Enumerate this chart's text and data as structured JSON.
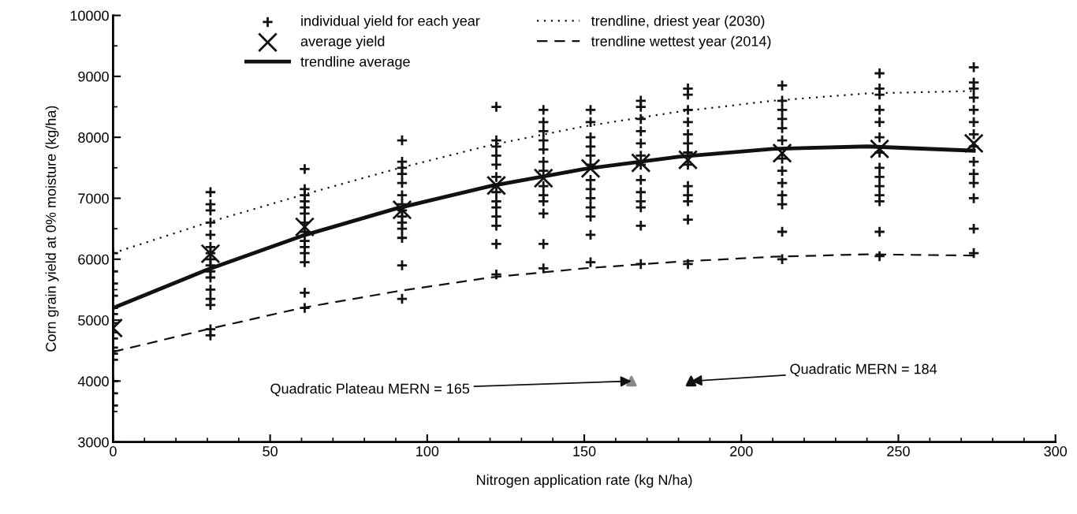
{
  "chart_data": {
    "type": "scatter",
    "xlabel": "Nitrogen application rate (kg N/ha)",
    "ylabel": "Corn grain yield at 0% moisture (kg/ha)",
    "xlim": [
      0,
      300
    ],
    "xticks": [
      0,
      50,
      100,
      150,
      200,
      250,
      300
    ],
    "ylim": [
      3000,
      10000
    ],
    "yticks": [
      3000,
      4000,
      5000,
      6000,
      7000,
      8000,
      9000,
      10000
    ],
    "grid": false,
    "legend": "top",
    "series": [
      {
        "name": "individual yield for each year",
        "marker": "cross",
        "color": "#111111",
        "x": [
          0,
          0,
          0,
          0,
          0,
          0,
          0,
          0,
          0,
          0,
          0,
          0,
          0,
          0,
          0,
          31,
          31,
          31,
          31,
          31,
          31,
          31,
          31,
          31,
          31,
          31,
          31,
          31,
          31,
          31,
          31,
          61,
          61,
          61,
          61,
          61,
          61,
          61,
          61,
          61,
          61,
          61,
          61,
          61,
          61,
          92,
          92,
          92,
          92,
          92,
          92,
          92,
          92,
          92,
          92,
          92,
          92,
          92,
          92,
          122,
          122,
          122,
          122,
          122,
          122,
          122,
          122,
          122,
          122,
          122,
          122,
          122,
          137,
          137,
          137,
          137,
          137,
          137,
          137,
          137,
          137,
          137,
          137,
          137,
          137,
          152,
          152,
          152,
          152,
          152,
          152,
          152,
          152,
          152,
          152,
          152,
          152,
          152,
          168,
          168,
          168,
          168,
          168,
          168,
          168,
          168,
          168,
          168,
          168,
          168,
          168,
          183,
          183,
          183,
          183,
          183,
          183,
          183,
          183,
          183,
          183,
          183,
          183,
          183,
          213,
          213,
          213,
          213,
          213,
          213,
          213,
          213,
          213,
          213,
          213,
          213,
          213,
          244,
          244,
          244,
          244,
          244,
          244,
          244,
          244,
          244,
          244,
          244,
          244,
          244,
          244,
          274,
          274,
          274,
          274,
          274,
          274,
          274,
          274,
          274,
          274,
          274,
          274,
          274,
          274
        ],
        "values": [
          6100,
          5800,
          5600,
          5400,
          5200,
          5100,
          4950,
          4800,
          4700,
          4550,
          4450,
          4350,
          4000,
          3800,
          3600,
          7100,
          6900,
          6800,
          6600,
          6400,
          6200,
          6100,
          6000,
          5900,
          5800,
          5700,
          5500,
          5350,
          5250,
          4850,
          4750,
          7480,
          7150,
          7050,
          6950,
          6850,
          6750,
          6600,
          6450,
          6300,
          6200,
          6100,
          5950,
          5450,
          5200,
          7950,
          7600,
          7500,
          7400,
          7250,
          7050,
          6900,
          6800,
          6700,
          6600,
          6500,
          6350,
          5900,
          5350,
          8500,
          7950,
          7850,
          7700,
          7550,
          7350,
          7100,
          6950,
          6850,
          6700,
          6550,
          6250,
          5750,
          8450,
          8250,
          8100,
          7950,
          7800,
          7600,
          7450,
          7200,
          7050,
          6950,
          6750,
          6250,
          5850,
          8450,
          8250,
          8000,
          7850,
          7700,
          7550,
          7300,
          7150,
          7000,
          6850,
          6700,
          6400,
          5950,
          8600,
          8500,
          8300,
          8100,
          7900,
          7700,
          7550,
          7300,
          7100,
          6950,
          6850,
          6550,
          5920,
          8800,
          8700,
          8450,
          8250,
          8050,
          7900,
          7750,
          7550,
          7200,
          7050,
          6950,
          6650,
          5920,
          8850,
          8600,
          8450,
          8300,
          8150,
          7950,
          7650,
          7450,
          7250,
          7050,
          6900,
          6450,
          6000,
          9050,
          8800,
          8700,
          8450,
          8250,
          8000,
          7750,
          7500,
          7350,
          7200,
          7050,
          6950,
          6450,
          6050,
          9150,
          8900,
          8800,
          8650,
          8450,
          8250,
          8050,
          7850,
          7600,
          7400,
          7250,
          7000,
          6500,
          6100
        ]
      },
      {
        "name": "average yield",
        "marker": "x",
        "color": "#111111",
        "x": [
          0,
          31,
          61,
          92,
          122,
          137,
          152,
          168,
          183,
          213,
          244,
          274
        ],
        "values": [
          4870,
          6090,
          6530,
          6810,
          7210,
          7330,
          7490,
          7580,
          7630,
          7740,
          7810,
          7900
        ]
      },
      {
        "name": "trendline average",
        "type": "line",
        "line_style": "solid",
        "color": "#111111",
        "x": [
          0,
          30,
          60,
          90,
          120,
          150,
          180,
          210,
          240,
          274
        ],
        "values": [
          5200,
          5830,
          6380,
          6830,
          7200,
          7480,
          7680,
          7810,
          7850,
          7780
        ]
      },
      {
        "name": "trendline, driest year (2030)",
        "type": "line",
        "line_style": "dotted",
        "color": "#111111",
        "x": [
          0,
          30,
          60,
          90,
          120,
          150,
          180,
          210,
          240,
          274
        ],
        "values": [
          6100,
          6600,
          7050,
          7480,
          7870,
          8180,
          8420,
          8600,
          8720,
          8760
        ]
      },
      {
        "name": "trendline wettest year (2014)",
        "type": "line",
        "line_style": "dashed",
        "color": "#111111",
        "x": [
          0,
          30,
          60,
          90,
          120,
          150,
          180,
          210,
          240,
          274
        ],
        "values": [
          4480,
          4850,
          5200,
          5470,
          5700,
          5850,
          5960,
          6040,
          6080,
          6060
        ]
      },
      {
        "marker": "triangle",
        "x": [
          165,
          184
        ],
        "values": [
          4000,
          4000
        ],
        "colors": [
          "#888888",
          "#111111"
        ]
      }
    ],
    "annotations": [
      {
        "text": "Quadratic Plateau MERN = 165",
        "x": 165,
        "y": 4000
      },
      {
        "text": "Quadratic MERN = 184",
        "x": 184,
        "y": 4000
      }
    ]
  }
}
